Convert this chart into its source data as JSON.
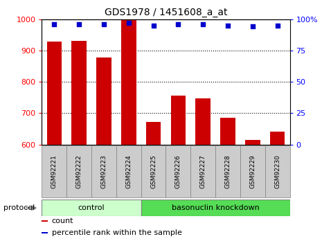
{
  "title": "GDS1978 / 1451608_a_at",
  "samples": [
    "GSM92221",
    "GSM92222",
    "GSM92223",
    "GSM92224",
    "GSM92225",
    "GSM92226",
    "GSM92227",
    "GSM92228",
    "GSM92229",
    "GSM92230"
  ],
  "counts": [
    928,
    931,
    878,
    1000,
    673,
    757,
    748,
    685,
    614,
    641
  ],
  "percentile_ranks": [
    96,
    96,
    96,
    97,
    95,
    96,
    96,
    95,
    94,
    95
  ],
  "ylim_left": [
    600,
    1000
  ],
  "ylim_right": [
    0,
    100
  ],
  "yticks_left": [
    600,
    700,
    800,
    900,
    1000
  ],
  "yticks_right": [
    0,
    25,
    50,
    75,
    100
  ],
  "ytick_labels_right": [
    "0",
    "25",
    "50",
    "75",
    "100%"
  ],
  "bar_color": "#cc0000",
  "dot_color": "#0000cc",
  "bar_width": 0.6,
  "protocol_groups": [
    {
      "label": "control",
      "start": 0,
      "end": 4,
      "color": "#ccffcc"
    },
    {
      "label": "basonuclin knockdown",
      "start": 4,
      "end": 10,
      "color": "#55dd55"
    }
  ],
  "protocol_label": "protocol",
  "legend_items": [
    {
      "color": "#cc0000",
      "label": "count"
    },
    {
      "color": "#0000cc",
      "label": "percentile rank within the sample"
    }
  ],
  "grid_color": "#000000",
  "tick_label_bg": "#cccccc"
}
